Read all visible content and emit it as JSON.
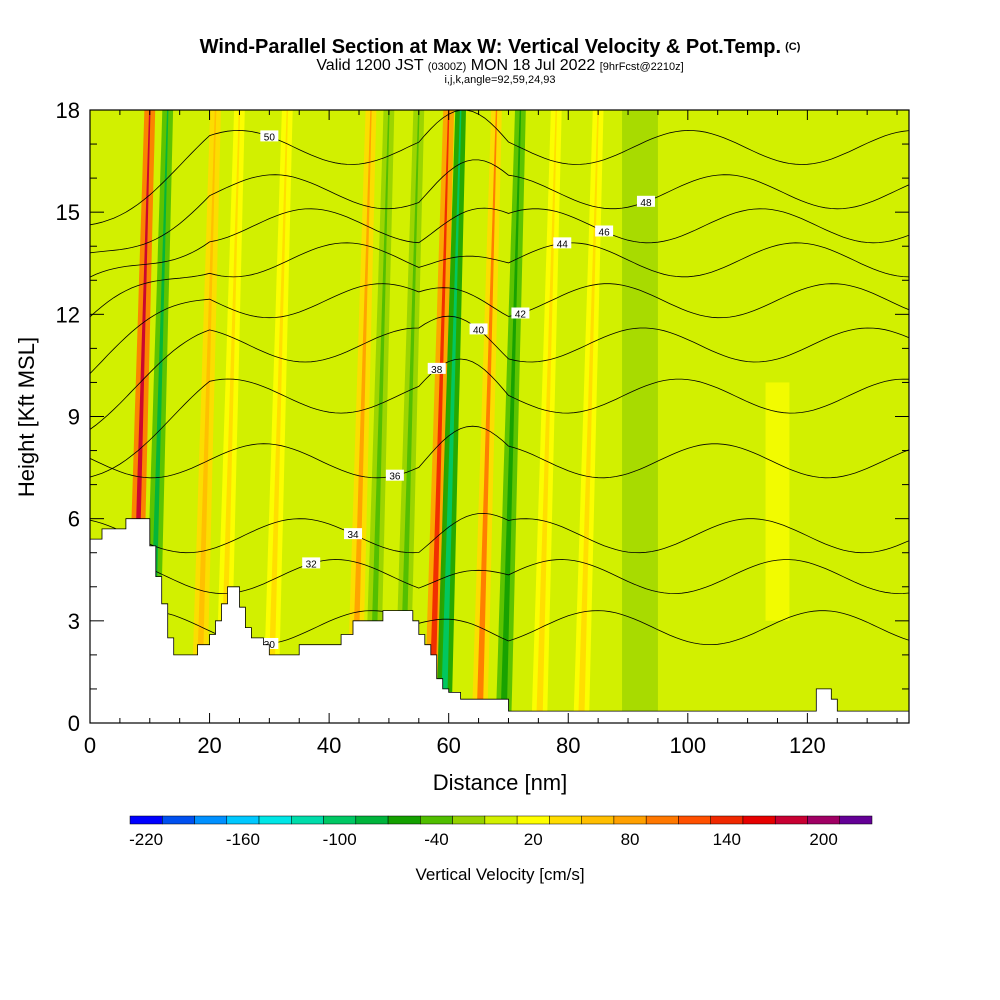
{
  "titles": {
    "main": "Wind-Parallel Section at Max W: Vertical Velocity & Pot.Temp.",
    "copyright": "(C)",
    "valid_prefix": "Valid 1200 JST",
    "valid_z": "(0300Z)",
    "valid_date": "MON 18 Jul 2022",
    "forecast": "[9hrFcst@2210z]",
    "indices": "i,j,k,angle=92,59,24,93"
  },
  "chart_data": {
    "type": "heatmap",
    "xlabel": "Distance [nm]",
    "ylabel": "Height [Kft MSL]",
    "xlim": [
      0,
      137
    ],
    "ylim": [
      0,
      18
    ],
    "x_ticks": [
      "0",
      "20",
      "40",
      "60",
      "80",
      "100",
      "120"
    ],
    "y_ticks": [
      "0",
      "3",
      "6",
      "9",
      "12",
      "15",
      "18"
    ],
    "colorbar": {
      "label": "Vertical Velocity [cm/s]",
      "range": [
        -230,
        230
      ],
      "tick_labels": [
        "-220",
        "-160",
        "-100",
        "-40",
        "20",
        "80",
        "140",
        "200"
      ],
      "colors": [
        "#0000ff",
        "#0050f0",
        "#0090ff",
        "#00c8ff",
        "#00e6e6",
        "#00dcaa",
        "#00c864",
        "#00b43c",
        "#14a000",
        "#50be00",
        "#96d200",
        "#d2f000",
        "#ffff00",
        "#ffdc00",
        "#ffbe00",
        "#ffa000",
        "#ff7800",
        "#ff5000",
        "#f02800",
        "#e60000",
        "#c80032",
        "#a00064",
        "#640096"
      ]
    },
    "updraft_columns": [
      {
        "x": 10,
        "w": 180
      },
      {
        "x": 13,
        "w": -80
      },
      {
        "x": 21,
        "w": 60
      },
      {
        "x": 25,
        "w": 40
      },
      {
        "x": 33,
        "w": 30
      },
      {
        "x": 47,
        "w": 80
      },
      {
        "x": 50,
        "w": -40
      },
      {
        "x": 55,
        "w": -50
      },
      {
        "x": 60,
        "w": 140
      },
      {
        "x": 62,
        "w": -110
      },
      {
        "x": 68,
        "w": 90
      },
      {
        "x": 72,
        "w": -60
      },
      {
        "x": 78,
        "w": 30
      },
      {
        "x": 85,
        "w": 30
      }
    ],
    "theta_contours": [
      {
        "label": "30",
        "base_kft": 2.8
      },
      {
        "label": "32",
        "base_kft": 4.3
      },
      {
        "label": "34",
        "base_kft": 5.5
      },
      {
        "label": "36",
        "base_kft": 7.7
      },
      {
        "label": "38",
        "base_kft": 9.6
      },
      {
        "label": "40",
        "base_kft": 11.1
      },
      {
        "label": "42",
        "base_kft": 12.4
      },
      {
        "label": "44",
        "base_kft": 13.6
      },
      {
        "label": "46",
        "base_kft": 14.6
      },
      {
        "label": "48",
        "base_kft": 15.6
      },
      {
        "label": "50",
        "base_kft": 16.9
      }
    ],
    "terrain": [
      {
        "x": 0,
        "h": 5.4
      },
      {
        "x": 1,
        "h": 5.4
      },
      {
        "x": 2,
        "h": 5.7
      },
      {
        "x": 5,
        "h": 5.7
      },
      {
        "x": 6,
        "h": 6.0
      },
      {
        "x": 9,
        "h": 6.0
      },
      {
        "x": 10,
        "h": 5.2
      },
      {
        "x": 11,
        "h": 4.3
      },
      {
        "x": 12,
        "h": 3.5
      },
      {
        "x": 13,
        "h": 2.5
      },
      {
        "x": 14,
        "h": 2.0
      },
      {
        "x": 17,
        "h": 2.0
      },
      {
        "x": 18,
        "h": 2.3
      },
      {
        "x": 20,
        "h": 2.6
      },
      {
        "x": 21,
        "h": 3.0
      },
      {
        "x": 22,
        "h": 3.5
      },
      {
        "x": 23,
        "h": 4.0
      },
      {
        "x": 24,
        "h": 4.0
      },
      {
        "x": 25,
        "h": 3.4
      },
      {
        "x": 26,
        "h": 2.8
      },
      {
        "x": 27,
        "h": 2.5
      },
      {
        "x": 29,
        "h": 2.3
      },
      {
        "x": 30,
        "h": 2.0
      },
      {
        "x": 34,
        "h": 2.0
      },
      {
        "x": 35,
        "h": 2.3
      },
      {
        "x": 40,
        "h": 2.3
      },
      {
        "x": 42,
        "h": 2.6
      },
      {
        "x": 44,
        "h": 3.0
      },
      {
        "x": 48,
        "h": 3.0
      },
      {
        "x": 49,
        "h": 3.3
      },
      {
        "x": 53,
        "h": 3.3
      },
      {
        "x": 54,
        "h": 3.0
      },
      {
        "x": 55,
        "h": 2.6
      },
      {
        "x": 56,
        "h": 2.3
      },
      {
        "x": 57,
        "h": 2.0
      },
      {
        "x": 58,
        "h": 1.3
      },
      {
        "x": 59,
        "h": 1.0
      },
      {
        "x": 60,
        "h": 0.9
      },
      {
        "x": 62,
        "h": 0.7
      },
      {
        "x": 69,
        "h": 0.7
      },
      {
        "x": 70,
        "h": 0.35
      },
      {
        "x": 121,
        "h": 0.35
      },
      {
        "x": 121.5,
        "h": 1.0
      },
      {
        "x": 123,
        "h": 1.0
      },
      {
        "x": 124,
        "h": 0.7
      },
      {
        "x": 125,
        "h": 0.35
      },
      {
        "x": 137,
        "h": 0.35
      }
    ]
  }
}
